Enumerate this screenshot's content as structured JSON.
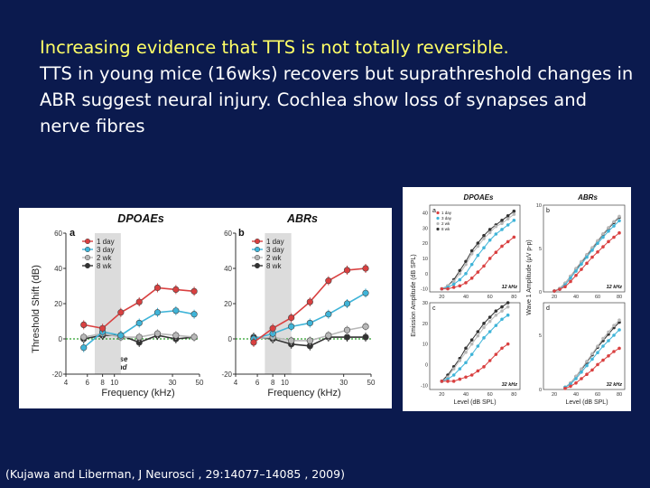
{
  "slide": {
    "title_line1": "Increasing evidence that TTS is not totally reversible.",
    "title_rest": "TTS in young mice (16wks) recovers but suprathreshold changes in ABR suggest neural injury. Cochlea show loss of synapses and nerve fibres",
    "citation": "(Kujawa and Liberman, J Neurosci , 29:14077–14085 , 2009)"
  },
  "colors": {
    "background": "#0b1a4e",
    "title_highlight": "#ffff66",
    "day1": "#d94040",
    "day3": "#3fb4d8",
    "wk2": "#b8b8b8",
    "wk8": "#333333",
    "noise_band": "#dcdcdc",
    "baseline": "#2ca02c"
  },
  "chart_data": [
    {
      "type": "line",
      "panel": "a",
      "title": "DPOAEs",
      "xlabel": "Frequency (kHz)",
      "ylabel": "Threshold Shift (dB)",
      "x_ticks": [
        "4",
        "6",
        "8",
        "10",
        "30",
        "50"
      ],
      "y_ticks": [
        "-20",
        "0",
        "20",
        "40",
        "60"
      ],
      "ylim": [
        -20,
        60
      ],
      "band_label": [
        "noise",
        "band"
      ],
      "categories": [
        "5.6",
        "8",
        "11.3",
        "16",
        "22.6",
        "32",
        "45.2"
      ],
      "series": [
        {
          "name": "1 day",
          "color": "#d94040",
          "values": [
            8,
            6,
            15,
            21,
            29,
            28,
            27
          ]
        },
        {
          "name": "3 day",
          "color": "#3fb4d8",
          "values": [
            -5,
            4,
            2,
            9,
            15,
            16,
            14
          ]
        },
        {
          "name": "2 wk",
          "color": "#b8b8b8",
          "values": [
            1,
            3,
            1,
            1,
            3,
            2,
            1
          ]
        },
        {
          "name": "8 wk",
          "color": "#333333",
          "values": [
            0,
            2,
            2,
            -2,
            2,
            0,
            1
          ]
        }
      ]
    },
    {
      "type": "line",
      "panel": "b",
      "title": "ABRs",
      "xlabel": "Frequency (kHz)",
      "x_ticks": [
        "4",
        "6",
        "8",
        "10",
        "30",
        "50"
      ],
      "y_ticks": [
        "-20",
        "0",
        "20",
        "40",
        "60"
      ],
      "ylim": [
        -20,
        60
      ],
      "categories": [
        "5.6",
        "8",
        "11.3",
        "16",
        "22.6",
        "32",
        "45.2"
      ],
      "series": [
        {
          "name": "1 day",
          "color": "#d94040",
          "values": [
            -2,
            6,
            12,
            21,
            33,
            39,
            40
          ]
        },
        {
          "name": "3 day",
          "color": "#3fb4d8",
          "values": [
            0,
            3,
            7,
            9,
            14,
            20,
            26
          ]
        },
        {
          "name": "2 wk",
          "color": "#b8b8b8",
          "values": [
            0,
            1,
            -1,
            -1,
            2,
            5,
            7
          ]
        },
        {
          "name": "8 wk",
          "color": "#333333",
          "values": [
            1,
            0,
            -3,
            -4,
            1,
            1,
            1
          ]
        }
      ]
    },
    {
      "type": "line",
      "panel": "a",
      "title": "DPOAEs",
      "ylabel": "Emission Amplitude (dB SPL)",
      "annotation": "12 kHz",
      "legend": [
        "1 day",
        "3 day",
        "2 wk",
        "8 wk"
      ],
      "x_ticks": [
        "20",
        "40",
        "60",
        "80"
      ],
      "y_ticks": [
        "-10",
        "0",
        "10",
        "20",
        "30",
        "40"
      ],
      "xlim": [
        10,
        85
      ],
      "ylim": [
        -12,
        45
      ],
      "x": [
        20,
        25,
        30,
        35,
        40,
        45,
        50,
        55,
        60,
        65,
        70,
        75,
        80
      ],
      "series": [
        {
          "name": "8 wk",
          "color": "#333333",
          "values": [
            -10,
            -8,
            -4,
            2,
            8,
            15,
            20,
            25,
            29,
            32,
            35,
            38,
            41
          ]
        },
        {
          "name": "2 wk",
          "color": "#b8b8b8",
          "values": [
            -10,
            -8,
            -5,
            0,
            6,
            13,
            18,
            23,
            27,
            31,
            33,
            36,
            39
          ]
        },
        {
          "name": "3 day",
          "color": "#3fb4d8",
          "values": [
            -10,
            -9,
            -7,
            -4,
            0,
            6,
            12,
            17,
            22,
            26,
            29,
            32,
            35
          ]
        },
        {
          "name": "1 day",
          "color": "#d94040",
          "values": [
            -10,
            -10,
            -9,
            -8,
            -6,
            -3,
            1,
            5,
            10,
            14,
            18,
            21,
            24
          ]
        }
      ]
    },
    {
      "type": "line",
      "panel": "b",
      "title": "ABRs",
      "ylabel": "Wave 1 Amplitude (μV p-p)",
      "annotation": "12 kHz",
      "x_ticks": [
        "20",
        "40",
        "60",
        "80"
      ],
      "y_ticks": [
        "0",
        "5",
        "10"
      ],
      "xlim": [
        10,
        85
      ],
      "ylim": [
        0,
        10
      ],
      "x": [
        20,
        25,
        30,
        35,
        40,
        45,
        50,
        55,
        60,
        65,
        70,
        75,
        80
      ],
      "series": [
        {
          "name": "8 wk",
          "color": "#333333",
          "values": [
            0.1,
            0.4,
            1.0,
            1.8,
            2.6,
            3.4,
            4.2,
            5.0,
            5.8,
            6.6,
            7.3,
            8.0,
            8.6
          ]
        },
        {
          "name": "2 wk",
          "color": "#b8b8b8",
          "values": [
            0.1,
            0.4,
            1.0,
            1.8,
            2.7,
            3.5,
            4.3,
            5.1,
            5.9,
            6.7,
            7.4,
            8.1,
            8.7
          ]
        },
        {
          "name": "3 day",
          "color": "#3fb4d8",
          "values": [
            0.1,
            0.3,
            0.8,
            1.6,
            2.4,
            3.2,
            4.0,
            4.8,
            5.6,
            6.3,
            7.0,
            7.6,
            8.2
          ]
        },
        {
          "name": "1 day",
          "color": "#d94040",
          "values": [
            0.1,
            0.3,
            0.6,
            1.2,
            1.9,
            2.6,
            3.3,
            4.0,
            4.6,
            5.2,
            5.8,
            6.3,
            6.8
          ]
        }
      ]
    },
    {
      "type": "line",
      "panel": "c",
      "xlabel": "Level (dB SPL)",
      "annotation": "32 kHz",
      "x_ticks": [
        "20",
        "40",
        "60",
        "80"
      ],
      "y_ticks": [
        "-10",
        "0",
        "10",
        "20",
        "30"
      ],
      "xlim": [
        10,
        85
      ],
      "ylim": [
        -12,
        30
      ],
      "x": [
        20,
        25,
        30,
        35,
        40,
        45,
        50,
        55,
        60,
        65,
        70,
        75
      ],
      "series": [
        {
          "name": "8 wk",
          "color": "#333333",
          "values": [
            -8,
            -5,
            -1,
            3,
            8,
            12,
            16,
            20,
            23,
            26,
            28,
            30
          ]
        },
        {
          "name": "2 wk",
          "color": "#b8b8b8",
          "values": [
            -8,
            -6,
            -2,
            2,
            6,
            10,
            14,
            18,
            21,
            24,
            26,
            28
          ]
        },
        {
          "name": "3 day",
          "color": "#3fb4d8",
          "values": [
            -8,
            -7,
            -5,
            -2,
            1,
            5,
            9,
            13,
            16,
            19,
            22,
            24
          ]
        },
        {
          "name": "1 day",
          "color": "#d94040",
          "values": [
            -8,
            -8,
            -8,
            -7,
            -6,
            -5,
            -3,
            -1,
            2,
            5,
            8,
            10
          ]
        }
      ]
    },
    {
      "type": "line",
      "panel": "d",
      "xlabel": "Level (dB SPL)",
      "annotation": "32 kHz",
      "x_ticks": [
        "20",
        "40",
        "60",
        "80"
      ],
      "y_ticks": [
        "0",
        "5"
      ],
      "xlim": [
        10,
        85
      ],
      "ylim": [
        0,
        8
      ],
      "x": [
        30,
        35,
        40,
        45,
        50,
        55,
        60,
        65,
        70,
        75,
        80
      ],
      "series": [
        {
          "name": "8 wk",
          "color": "#333333",
          "values": [
            0.2,
            0.6,
            1.2,
            1.8,
            2.5,
            3.2,
            3.9,
            4.5,
            5.1,
            5.7,
            6.2
          ]
        },
        {
          "name": "2 wk",
          "color": "#b8b8b8",
          "values": [
            0.2,
            0.6,
            1.2,
            1.9,
            2.6,
            3.3,
            4.0,
            4.7,
            5.3,
            5.9,
            6.4
          ]
        },
        {
          "name": "3 day",
          "color": "#3fb4d8",
          "values": [
            0.2,
            0.5,
            1.0,
            1.6,
            2.2,
            2.8,
            3.4,
            4.0,
            4.5,
            5.0,
            5.5
          ]
        },
        {
          "name": "1 day",
          "color": "#d94040",
          "values": [
            0.1,
            0.3,
            0.6,
            1.0,
            1.4,
            1.8,
            2.3,
            2.7,
            3.1,
            3.5,
            3.8
          ]
        }
      ]
    }
  ],
  "legend_left": {
    "a": [
      "1 day",
      "3 day",
      "2 wk",
      "8 wk"
    ],
    "b": [
      "1 day",
      "3 day",
      "2 wk",
      "8 wk"
    ]
  },
  "panel_letters": [
    "a",
    "b",
    "a",
    "b",
    "c",
    "d"
  ]
}
